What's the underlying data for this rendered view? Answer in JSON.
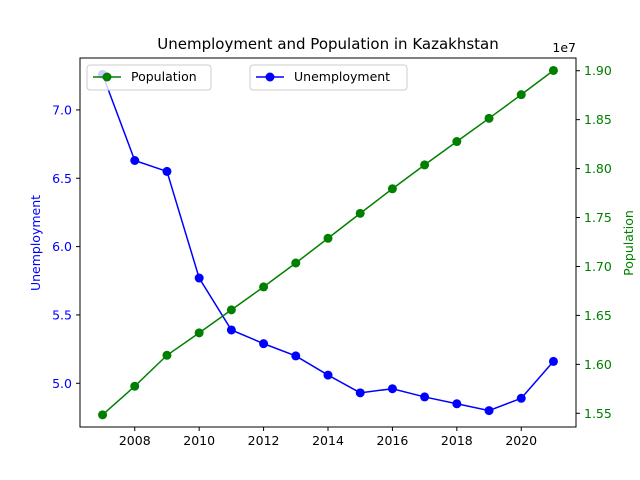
{
  "chart_data": {
    "type": "line",
    "title": "Unemployment and Population in Kazakhstan",
    "x": [
      2007,
      2008,
      2009,
      2010,
      2011,
      2012,
      2013,
      2014,
      2015,
      2016,
      2017,
      2018,
      2019,
      2020,
      2021
    ],
    "xlim": [
      2006.3,
      2021.7
    ],
    "xticks": [
      2008,
      2010,
      2012,
      2014,
      2016,
      2018,
      2020
    ],
    "series": [
      {
        "name": "Unemployment",
        "axis": "left",
        "color": "#0000ff",
        "values": [
          7.26,
          6.63,
          6.55,
          5.77,
          5.39,
          5.29,
          5.2,
          5.06,
          4.93,
          4.96,
          4.9,
          4.85,
          4.8,
          4.89,
          5.16
        ]
      },
      {
        "name": "Population",
        "axis": "right",
        "color": "#008000",
        "values": [
          15484192,
          15776492,
          16092822,
          16321872,
          16556600,
          16791425,
          17035550,
          17288285,
          17542806,
          17794055,
          18037776,
          18276452,
          18513673,
          18755666,
          19002586
        ]
      }
    ],
    "y_left": {
      "label": "Unemployment",
      "color": "#0000ff",
      "lim": [
        4.68,
        7.38
      ],
      "ticks": [
        "5.0",
        "5.5",
        "6.0",
        "6.5",
        "7.0"
      ],
      "tick_values": [
        5.0,
        5.5,
        6.0,
        6.5,
        7.0
      ]
    },
    "y_right": {
      "label": "Population",
      "color": "#008000",
      "lim": [
        15.36,
        19.13
      ],
      "offset_text": "1e7",
      "ticks": [
        "1.55",
        "1.60",
        "1.65",
        "1.70",
        "1.75",
        "1.80",
        "1.85",
        "1.90"
      ],
      "tick_values": [
        15.5,
        16.0,
        16.5,
        17.0,
        17.5,
        18.0,
        18.5,
        19.0
      ]
    },
    "legends": [
      {
        "label": "Population",
        "placement": "upper-left",
        "color": "#008000"
      },
      {
        "label": "Unemployment",
        "placement": "upper-center",
        "color": "#0000ff"
      }
    ],
    "grid": false
  }
}
